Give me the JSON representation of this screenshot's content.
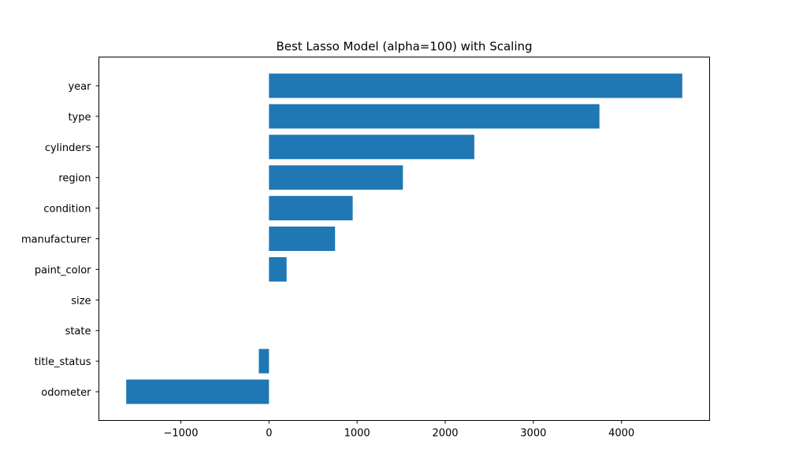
{
  "chart_data": {
    "type": "bar",
    "orientation": "horizontal",
    "title": "Best Lasso Model (alpha=100) with Scaling",
    "xlabel": "",
    "ylabel": "",
    "categories": [
      "year",
      "type",
      "cylinders",
      "region",
      "condition",
      "manufacturer",
      "paint_color",
      "size",
      "state",
      "title_status",
      "odometer"
    ],
    "values": [
      4690,
      3750,
      2330,
      1520,
      950,
      750,
      200,
      0,
      0,
      -115,
      -1620
    ],
    "xlim": [
      -1930,
      5000
    ],
    "xticks": [
      -1000,
      0,
      1000,
      2000,
      3000,
      4000
    ],
    "xtick_labels": [
      "−1000",
      "0",
      "1000",
      "2000",
      "3000",
      "4000"
    ],
    "grid": false,
    "bar_color": "#1f77b4"
  }
}
